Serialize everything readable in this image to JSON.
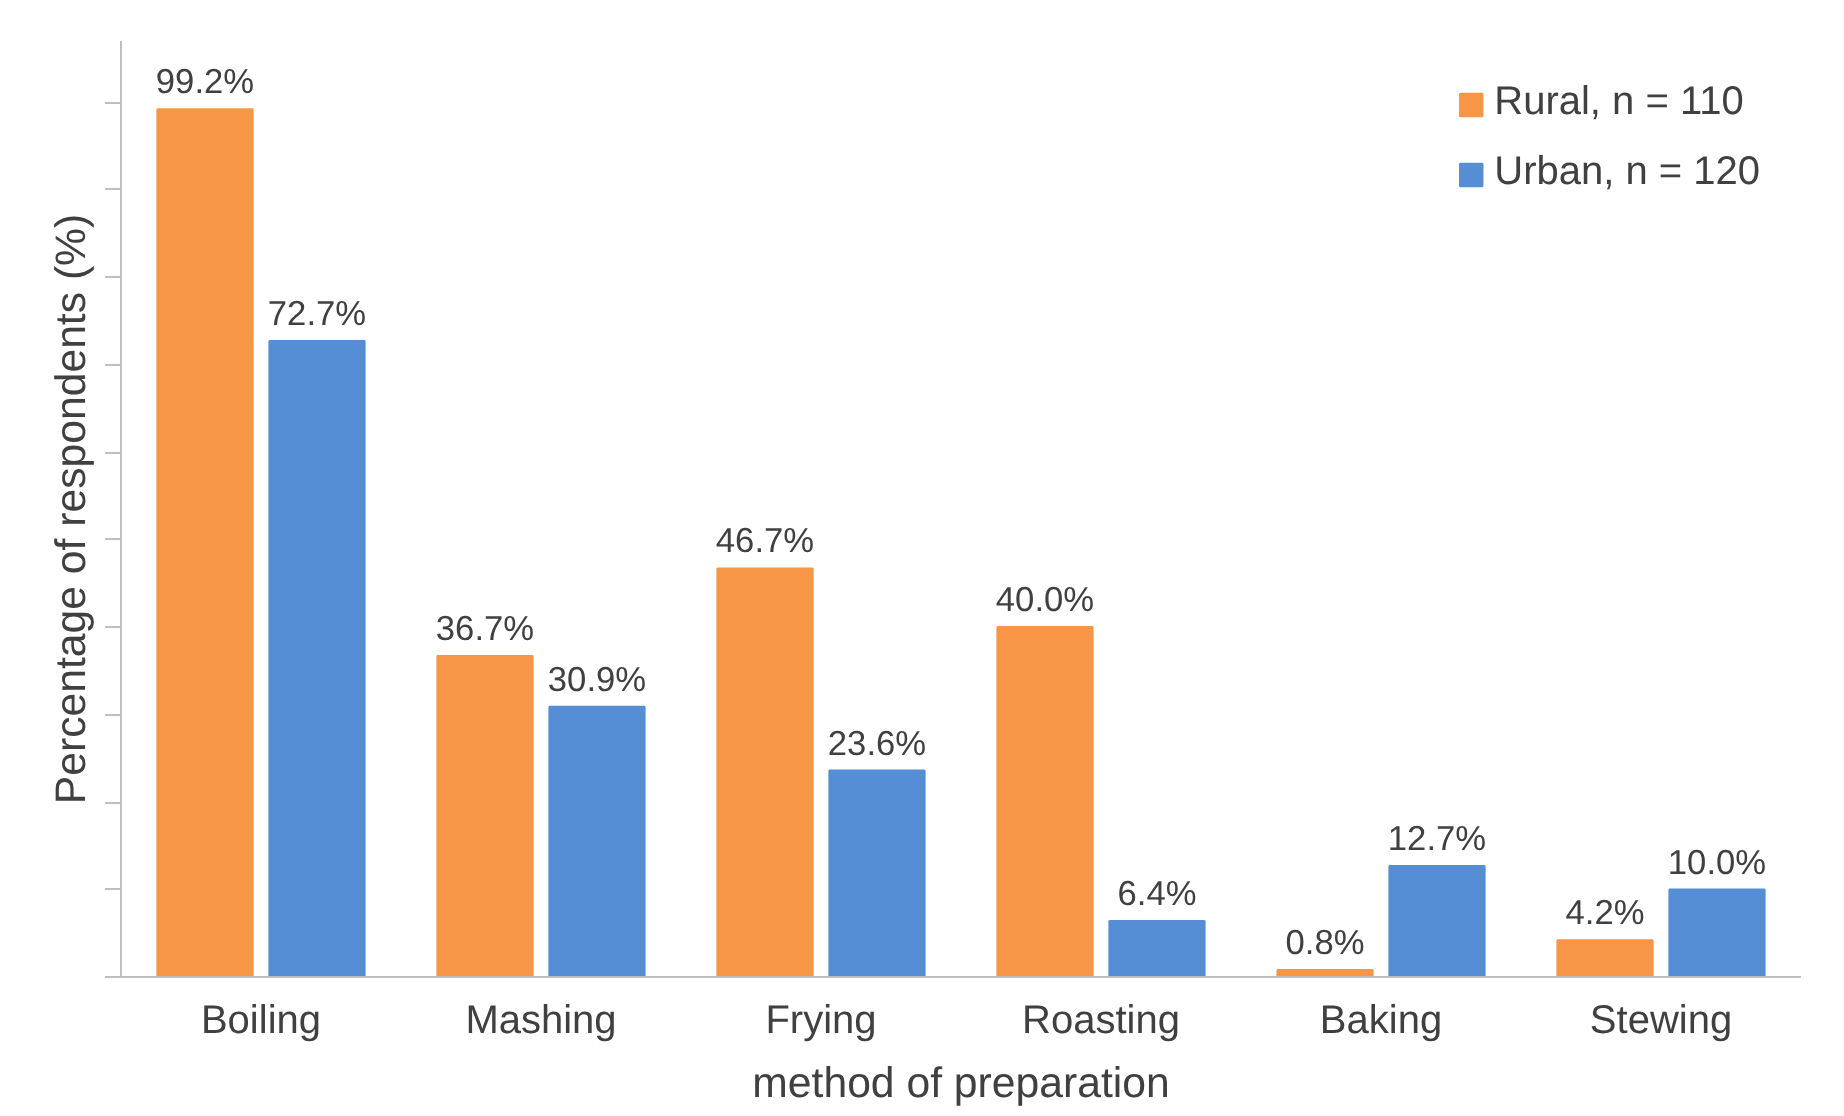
{
  "chart_data": {
    "type": "bar",
    "xlabel": "method of preparation",
    "ylabel": "Percentage of respondents (%)",
    "categories": [
      "Boiling",
      "Mashing",
      "Frying",
      "Roasting",
      "Baking",
      "Stewing"
    ],
    "series": [
      {
        "name": "Rural, n = 110",
        "color": "#f79646",
        "values": [
          99.2,
          36.7,
          46.7,
          40.0,
          0.8,
          4.2
        ],
        "value_labels": [
          "99.2%",
          "36.7%",
          "46.7%",
          "40.0%",
          "0.8%",
          "4.2%"
        ]
      },
      {
        "name": "Urban, n = 120",
        "color": "#558ed5",
        "values": [
          72.7,
          30.9,
          23.6,
          6.4,
          12.7,
          10.0
        ],
        "value_labels": [
          "72.7%",
          "30.9%",
          "23.6%",
          "6.4%",
          "12.7%",
          "10.0%"
        ]
      }
    ],
    "ylim": [
      0,
      107
    ],
    "yticks": [
      {
        "value": 0,
        "label": null
      },
      {
        "value": 10,
        "label": null
      },
      {
        "value": 20,
        "label": null
      },
      {
        "value": 30,
        "label": null
      },
      {
        "value": 40,
        "label": null
      },
      {
        "value": 50,
        "label": null
      },
      {
        "value": 60,
        "label": null
      },
      {
        "value": 70,
        "label": null
      },
      {
        "value": 80,
        "label": null
      },
      {
        "value": 90,
        "label": null
      },
      {
        "value": 100,
        "label": null
      }
    ],
    "grid": false,
    "legend": "top right"
  }
}
